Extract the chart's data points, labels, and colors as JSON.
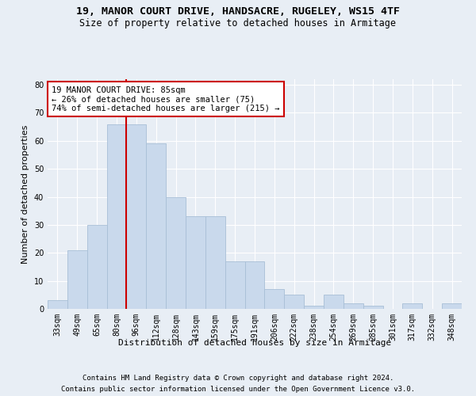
{
  "title1": "19, MANOR COURT DRIVE, HANDSACRE, RUGELEY, WS15 4TF",
  "title2": "Size of property relative to detached houses in Armitage",
  "xlabel": "Distribution of detached houses by size in Armitage",
  "ylabel": "Number of detached properties",
  "categories": [
    "33sqm",
    "49sqm",
    "65sqm",
    "80sqm",
    "96sqm",
    "112sqm",
    "128sqm",
    "143sqm",
    "159sqm",
    "175sqm",
    "191sqm",
    "206sqm",
    "222sqm",
    "238sqm",
    "254sqm",
    "269sqm",
    "285sqm",
    "301sqm",
    "317sqm",
    "332sqm",
    "348sqm"
  ],
  "values": [
    3,
    21,
    30,
    66,
    66,
    59,
    40,
    33,
    33,
    17,
    17,
    7,
    5,
    1,
    5,
    2,
    1,
    0,
    2,
    0,
    2
  ],
  "bar_color": "#c9d9ec",
  "bar_edge_color": "#a8bfd6",
  "vline_index": 3.5,
  "vline_color": "#cc0000",
  "annotation_text": "19 MANOR COURT DRIVE: 85sqm\n← 26% of detached houses are smaller (75)\n74% of semi-detached houses are larger (215) →",
  "annotation_box_facecolor": "#ffffff",
  "annotation_box_edgecolor": "#cc0000",
  "ylim": [
    0,
    82
  ],
  "yticks": [
    0,
    10,
    20,
    30,
    40,
    50,
    60,
    70,
    80
  ],
  "bg_color": "#e8eef5",
  "grid_color": "#ffffff",
  "footer1": "Contains HM Land Registry data © Crown copyright and database right 2024.",
  "footer2": "Contains public sector information licensed under the Open Government Licence v3.0.",
  "title1_fontsize": 9.5,
  "title2_fontsize": 8.5,
  "xlabel_fontsize": 8,
  "ylabel_fontsize": 8,
  "tick_fontsize": 7,
  "annotation_fontsize": 7.5,
  "footer_fontsize": 6.5
}
